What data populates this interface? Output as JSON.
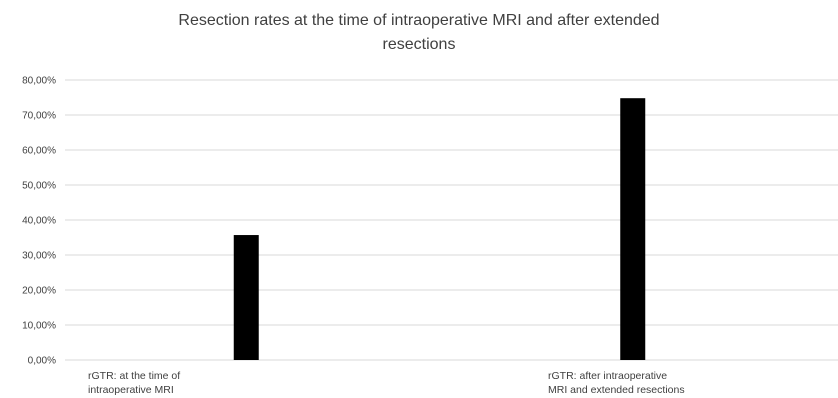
{
  "chart_data": {
    "type": "bar",
    "title_lines": [
      "Resection rates at the time of intraoperative MRI and after extended",
      "resections"
    ],
    "categories": [
      [
        "rGTR: at the time of",
        "intraoperative MRI"
      ],
      [
        "rGTR: after intraoperative",
        "MRI and extended resections"
      ]
    ],
    "values": [
      35.7,
      74.8
    ],
    "ylim": [
      0,
      80
    ],
    "yticks": [
      "0,00%",
      "10,00%",
      "20,00%",
      "30,00%",
      "40,00%",
      "50,00%",
      "60,00%",
      "70,00%",
      "80,00%"
    ],
    "grid": true,
    "bar_color": "#000000",
    "grid_color": "#d9d9d9"
  }
}
